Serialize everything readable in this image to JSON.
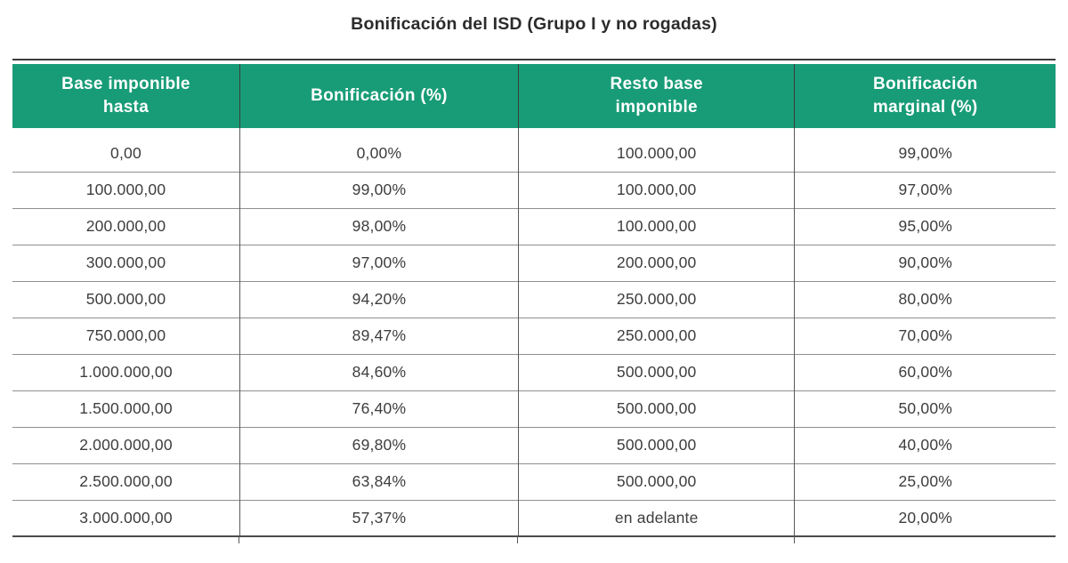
{
  "title": "Bonificación del ISD (Grupo I y no rogadas)",
  "colors": {
    "header_bg": "#189c77",
    "header_text": "#ffffff",
    "body_text": "#3d3d3d",
    "row_line": "#8f8f8f",
    "col_line": "#595959",
    "top_rule": "#3c3c3c",
    "bottom_rule": "#4c4c4c",
    "title_text": "#2b2b2b"
  },
  "table": {
    "headers": [
      "Base imponible\nhasta",
      "Bonificación (%)",
      "Resto base\nimponible",
      "Bonificación\nmarginal (%)"
    ],
    "rows": [
      [
        "0,00",
        "0,00%",
        "100.000,00",
        "99,00%"
      ],
      [
        "100.000,00",
        "99,00%",
        "100.000,00",
        "97,00%"
      ],
      [
        "200.000,00",
        "98,00%",
        "100.000,00",
        "95,00%"
      ],
      [
        "300.000,00",
        "97,00%",
        "200.000,00",
        "90,00%"
      ],
      [
        "500.000,00",
        "94,20%",
        "250.000,00",
        "80,00%"
      ],
      [
        "750.000,00",
        "89,47%",
        "250.000,00",
        "70,00%"
      ],
      [
        "1.000.000,00",
        "84,60%",
        "500.000,00",
        "60,00%"
      ],
      [
        "1.500.000,00",
        "76,40%",
        "500.000,00",
        "50,00%"
      ],
      [
        "2.000.000,00",
        "69,80%",
        "500.000,00",
        "40,00%"
      ],
      [
        "2.500.000,00",
        "63,84%",
        "500.000,00",
        "25,00%"
      ],
      [
        "3.000.000,00",
        "57,37%",
        "en adelante",
        "20,00%"
      ]
    ]
  }
}
